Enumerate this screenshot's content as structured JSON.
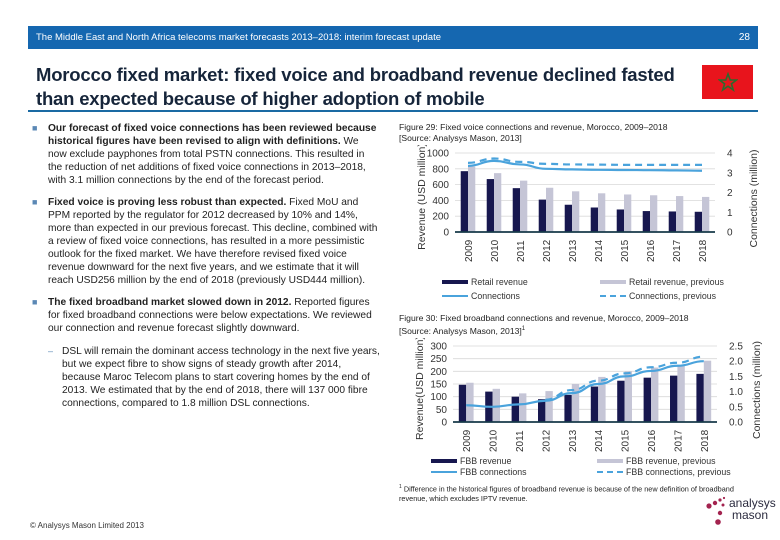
{
  "header": {
    "title": "The Middle East and North Africa telecoms market forecasts 2013–2018: interim forecast update",
    "page_number": "28"
  },
  "page_title": "Morocco fixed market: fixed voice and broadband revenue declined fasted than expected because of higher adoption of mobile",
  "flag": {
    "country": "Morocco",
    "icon": "morocco-flag-icon",
    "color": "#e8141c",
    "star_color": "#2d6a2d"
  },
  "bullets": [
    {
      "bold": "Our forecast of fixed voice connections has been reviewed because historical figures have been revised to align with definitions.",
      "text": " We now exclude payphones from total PSTN connections. This resulted in the reduction of net additions of fixed voice connections in 2013–2018, with 3.1 million connections by the end of the forecast period."
    },
    {
      "bold": "Fixed voice is proving less robust than expected.",
      "text": " Fixed MoU and PPM reported by the regulator for 2012 decreased by 10% and 14%, more than expected in our previous forecast. This decline, combined with a review of fixed voice connections, has resulted in a more pessimistic outlook for the fixed market. We have therefore revised fixed voice revenue downward for the next five years, and we estimate that it will reach USD256 million by the end of 2018 (previously USD444 million)."
    },
    {
      "bold": "The fixed broadband market slowed down in 2012.",
      "text": " Reported figures for fixed broadband connections were below expectations. We reviewed our connection and revenue forecast slightly downward."
    }
  ],
  "sub_bullet": {
    "mark": "–",
    "text": "DSL will remain the dominant access technology in the next five years, but we expect fibre to show signs of steady growth after 2014, because Maroc Telecom plans to start covering homes by the end of 2013. We estimated that by the end of 2018, there will 137 000 fibre connections, compared to 1.8 million DSL connections."
  },
  "bullet_mark": "■",
  "copyright": "© Analysys Mason Limited 2013",
  "figures": [
    {
      "caption_line1": "Figure 29: Fixed voice connections and revenue, Morocco, 2009–2018",
      "caption_line2": "[Source: Analysys Mason, 2013]"
    },
    {
      "caption_line1": "Figure 30: Fixed broadband connections and revenue, Morocco, 2009–2018",
      "caption_line2": "[Source: Analysys Mason, 2013]",
      "caption_sup": "1"
    }
  ],
  "footnote": {
    "mark": "1",
    "text": "Difference in the historical figures of broadband revenue is because of the new definition of broadband revenue, which excludes IPTV revenue."
  },
  "logo": {
    "line1": "analysys",
    "line2": "mason",
    "dot_color": "#a3234f"
  },
  "colors": {
    "header_blue": "#1567b0",
    "bar_current": "#17174f",
    "bar_previous": "#c5c5d6",
    "line": "#4aa3dc",
    "axis": "#173a4a"
  },
  "chart_data": [
    {
      "type": "bar",
      "title": "Figure 29: Fixed voice connections and revenue, Morocco, 2009–2018",
      "categories": [
        "2009",
        "2010",
        "2011",
        "2012",
        "2013",
        "2014",
        "2015",
        "2016",
        "2017",
        "2018"
      ],
      "ylabel": "Revenue (USD million)",
      "y2label": "Connections (million)",
      "ylim": [
        0,
        1000
      ],
      "y2lim": [
        0,
        4
      ],
      "yticks": [
        "0",
        "200",
        "400",
        "600",
        "800",
        "1000"
      ],
      "y2ticks": [
        "0",
        "1",
        "2",
        "3",
        "4"
      ],
      "grid": true,
      "series": [
        {
          "name": "Retail revenue",
          "kind": "bar",
          "axis": "left",
          "values": [
            770,
            670,
            555,
            410,
            345,
            310,
            285,
            265,
            260,
            256
          ]
        },
        {
          "name": "Retail revenue, previous",
          "kind": "bar",
          "axis": "left",
          "values": [
            830,
            745,
            650,
            560,
            515,
            490,
            475,
            465,
            455,
            444
          ]
        },
        {
          "name": "Connections",
          "kind": "line",
          "axis": "right",
          "values": [
            3.35,
            3.6,
            3.42,
            3.2,
            3.17,
            3.15,
            3.14,
            3.13,
            3.12,
            3.1
          ]
        },
        {
          "name": "Connections, previous",
          "kind": "dashed-line",
          "axis": "right",
          "values": [
            3.5,
            3.72,
            3.55,
            3.45,
            3.42,
            3.41,
            3.4,
            3.4,
            3.4,
            3.4
          ]
        }
      ],
      "legend": [
        "Retail revenue",
        "Retail revenue, previous",
        "Connections",
        "Connections, previous"
      ],
      "legend_placement": "bottom"
    },
    {
      "type": "bar",
      "title": "Figure 30: Fixed broadband connections and revenue, Morocco, 2009–2018",
      "categories": [
        "2009",
        "2010",
        "2011",
        "2012",
        "2013",
        "2014",
        "2015",
        "2016",
        "2017",
        "2018"
      ],
      "ylabel": "Revenue(USD million)",
      "y2label": "Connections (million)",
      "ylim": [
        0,
        300
      ],
      "y2lim": [
        0,
        2.5
      ],
      "yticks": [
        "0",
        "50",
        "100",
        "150",
        "200",
        "250",
        "300"
      ],
      "y2ticks": [
        "0.0",
        "0.5",
        "1.0",
        "1.5",
        "2.0",
        "2.5"
      ],
      "grid": true,
      "series": [
        {
          "name": "FBB revenue",
          "kind": "bar",
          "axis": "left",
          "values": [
            147,
            120,
            100,
            90,
            107,
            140,
            163,
            175,
            183,
            190
          ]
        },
        {
          "name": "FBB revenue, previous",
          "kind": "bar",
          "axis": "left",
          "values": [
            155,
            131,
            113,
            122,
            150,
            178,
            200,
            215,
            225,
            242
          ]
        },
        {
          "name": "FBB connections",
          "kind": "line",
          "axis": "right",
          "values": [
            0.55,
            0.5,
            0.58,
            0.7,
            0.95,
            1.25,
            1.5,
            1.68,
            1.85,
            2.0
          ]
        },
        {
          "name": "FBB connections, previous",
          "kind": "dashed-line",
          "axis": "right",
          "values": [
            null,
            null,
            null,
            0.73,
            1.05,
            1.36,
            1.6,
            1.8,
            1.95,
            2.15
          ]
        }
      ],
      "legend": [
        "FBB revenue",
        "FBB revenue, previous",
        "FBB connections",
        "FBB connections, previous"
      ],
      "legend_placement": "bottom"
    }
  ]
}
